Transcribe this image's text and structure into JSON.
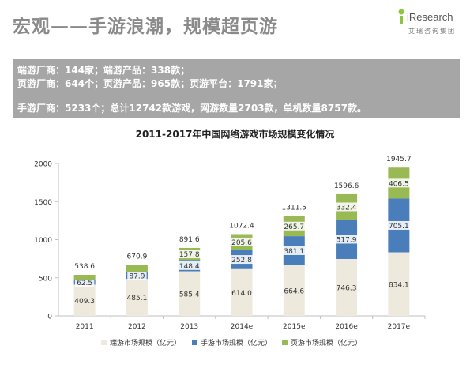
{
  "header": {
    "title": "宏观——手游浪潮，规模超页游"
  },
  "logo": {
    "text": "iResearch",
    "sub": "艾瑞咨询集团",
    "accent": "#8cc63f"
  },
  "banner": {
    "line1": "端游厂商：144家；端游产品：338款；",
    "line2": "页游厂商：644个；页游产品：965款；页游平台：1791家；",
    "line3": "手游厂商：5233个；总计12742款游戏，网游数量2703款，单机数量8757款。"
  },
  "chart_data": {
    "type": "bar",
    "stacked": true,
    "title": "2011-2017年中国网络游戏市场规模变化情况",
    "categories": [
      "2011",
      "2012",
      "2013",
      "2014e",
      "2015e",
      "2016e",
      "2017e"
    ],
    "series": [
      {
        "name": "端游市场规模（亿元）",
        "color": "#ede9dc",
        "values": [
          409.3,
          485.1,
          585.4,
          614.0,
          664.6,
          746.3,
          834.1
        ],
        "labels": [
          "409.3",
          "485.1",
          "585.4",
          "614.0",
          "664.6",
          "746.3",
          "834.1"
        ]
      },
      {
        "name": "手游市场规模（亿元）",
        "color": "#4a7ebb",
        "values": [
          62.5,
          87.9,
          148.4,
          252.8,
          381.1,
          517.9,
          705.1
        ],
        "labels": [
          "62.5",
          "87.9",
          "148.4",
          "252.8",
          "381.1",
          "517.9",
          "705.1"
        ]
      },
      {
        "name": "页游市场规模（亿元）",
        "color": "#98b954",
        "values": [
          66.8,
          97.9,
          157.8,
          205.6,
          265.7,
          332.4,
          406.5
        ],
        "labels": [
          "",
          "",
          "157.8",
          "205.6",
          "265.7",
          "332.4",
          "406.5"
        ]
      }
    ],
    "totals": [
      "538.6",
      "670.9",
      "891.6",
      "1072.4",
      "1311.5",
      "1596.6",
      "1945.7"
    ],
    "ylim": [
      0,
      2000
    ],
    "yticks": [
      "0",
      "500",
      "1000",
      "1500",
      "2000"
    ],
    "legend_position": "bottom",
    "grid": false
  }
}
